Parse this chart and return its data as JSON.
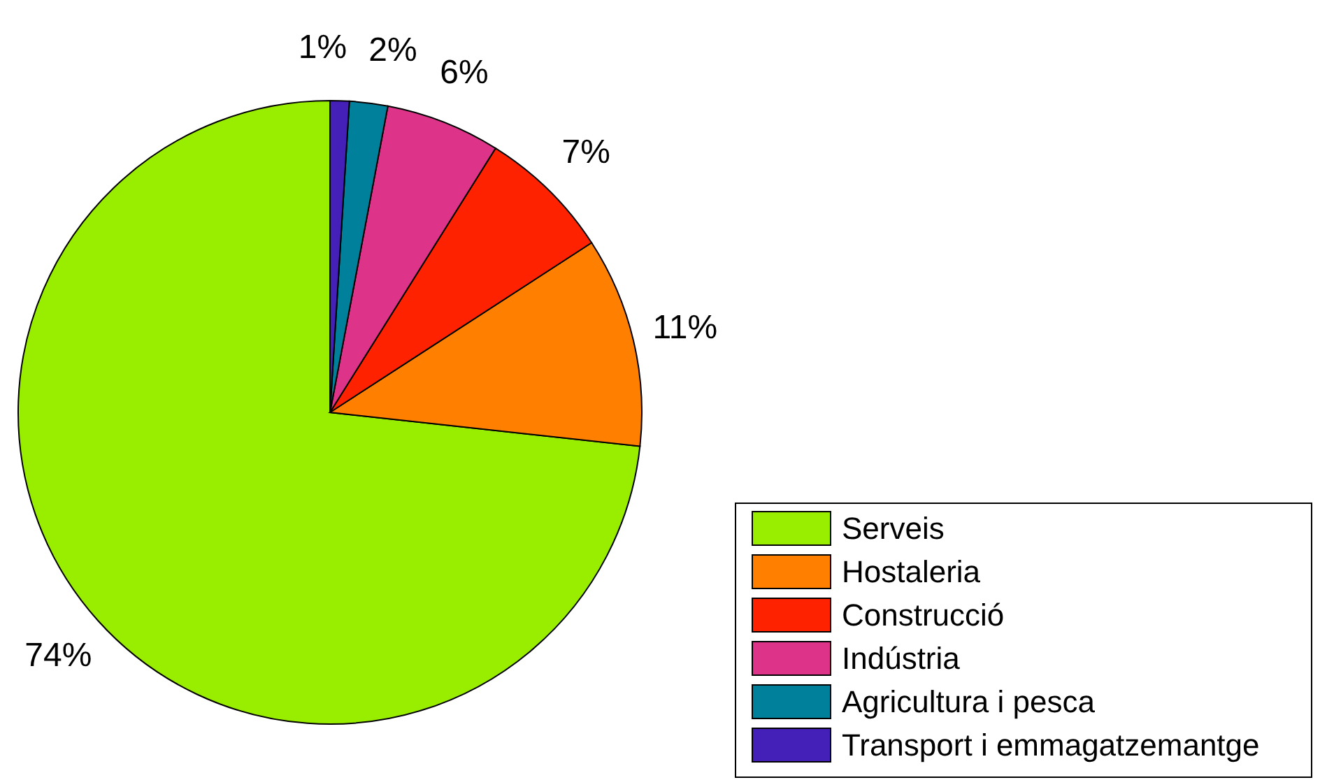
{
  "chart_data": {
    "type": "pie",
    "categories": [
      "Serveis",
      "Hostaleria",
      "Construcció",
      "Indústria",
      "Agricultura i pesca",
      "Transport i emmagatzemantge"
    ],
    "values": [
      74,
      11,
      7,
      6,
      2,
      1
    ],
    "colors": [
      "#99ee00",
      "#ff8000",
      "#ff2200",
      "#dd3388",
      "#00809a",
      "#4420b8"
    ],
    "value_labels": [
      "74%",
      "11%",
      "7%",
      "6%",
      "2%",
      "1%"
    ],
    "legend": "bottom right"
  }
}
